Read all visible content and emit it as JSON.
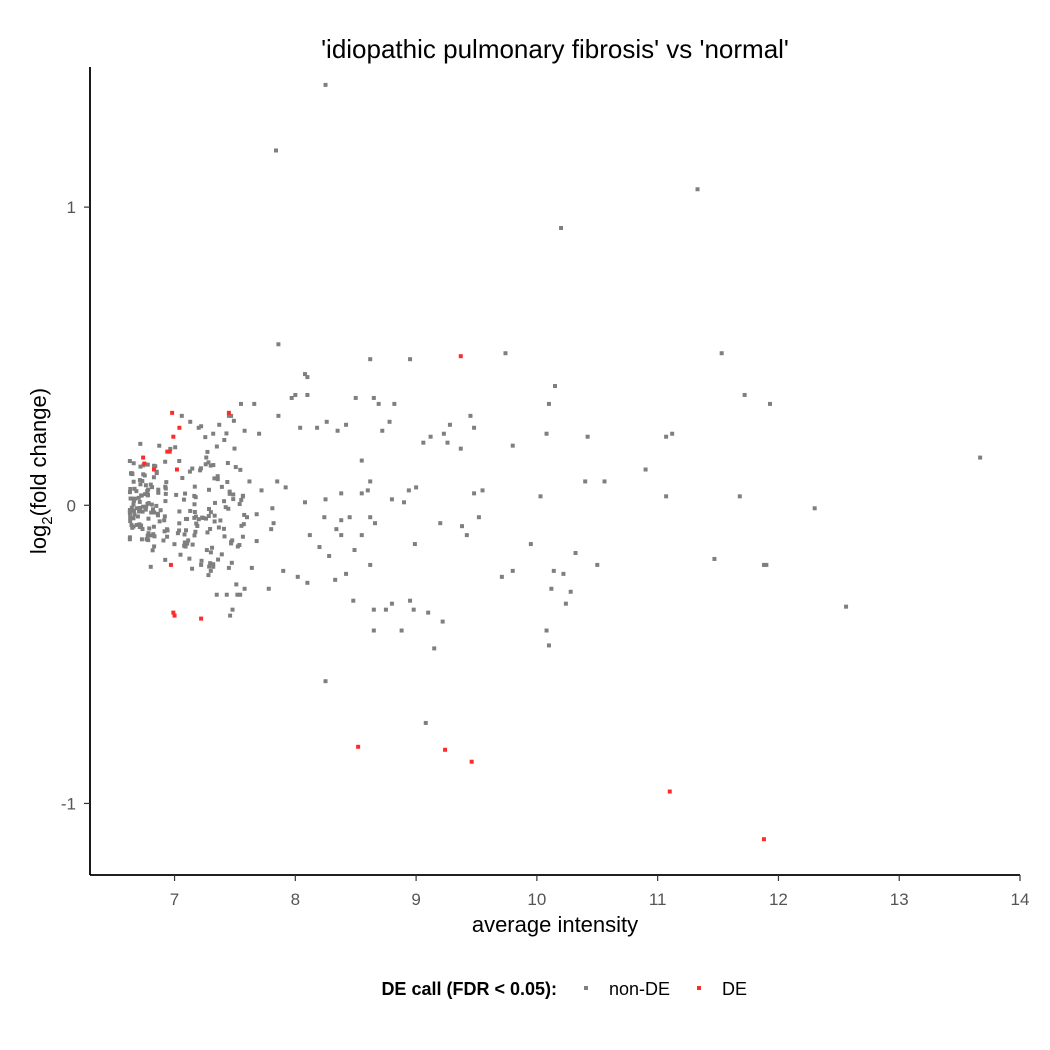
{
  "chart_data": {
    "type": "scatter",
    "title": "'idiopathic pulmonary fibrosis' vs 'normal'",
    "xlabel": "average intensity",
    "ylabel_main": "log",
    "ylabel_sub": "2",
    "ylabel_rest": "(fold change)",
    "xlim": [
      6.3,
      14.0
    ],
    "ylim": [
      -1.24,
      1.47
    ],
    "x_ticks": [
      7,
      8,
      9,
      10,
      11,
      12,
      13,
      14
    ],
    "y_ticks": [
      -1,
      0,
      1
    ],
    "x_tick_labels": [
      "7",
      "8",
      "9",
      "10",
      "11",
      "12",
      "13",
      "14"
    ],
    "y_tick_labels": [
      "-1",
      "0",
      "1"
    ],
    "grid": false,
    "legend": {
      "position": "bottom",
      "title": "DE call (FDR < 0.05):",
      "entries": [
        "non-DE",
        "DE"
      ]
    },
    "colors": {
      "non_de": "#7f7f7f",
      "de": "#ff2a2a"
    },
    "series": [
      {
        "name": "non-DE",
        "points": [
          [
            8.25,
            1.41
          ],
          [
            7.84,
            1.19
          ],
          [
            11.33,
            1.06
          ],
          [
            10.2,
            0.93
          ],
          [
            7.86,
            0.54
          ],
          [
            9.74,
            0.51
          ],
          [
            11.53,
            0.51
          ],
          [
            8.62,
            0.49
          ],
          [
            8.95,
            0.49
          ],
          [
            10.15,
            0.4
          ],
          [
            11.72,
            0.37
          ],
          [
            11.93,
            0.34
          ],
          [
            8.08,
            0.44
          ],
          [
            8.1,
            0.43
          ],
          [
            8.0,
            0.37
          ],
          [
            7.97,
            0.36
          ],
          [
            8.1,
            0.37
          ],
          [
            8.5,
            0.36
          ],
          [
            8.65,
            0.36
          ],
          [
            8.69,
            0.34
          ],
          [
            8.82,
            0.34
          ],
          [
            10.1,
            0.34
          ],
          [
            7.06,
            0.3
          ],
          [
            7.55,
            0.34
          ],
          [
            7.66,
            0.34
          ],
          [
            7.45,
            0.3
          ],
          [
            7.86,
            0.3
          ],
          [
            8.26,
            0.28
          ],
          [
            8.42,
            0.27
          ],
          [
            8.78,
            0.28
          ],
          [
            9.23,
            0.24
          ],
          [
            9.28,
            0.27
          ],
          [
            9.45,
            0.3
          ],
          [
            9.48,
            0.26
          ],
          [
            10.08,
            0.24
          ],
          [
            10.42,
            0.23
          ],
          [
            11.07,
            0.23
          ],
          [
            11.12,
            0.24
          ],
          [
            7.58,
            0.25
          ],
          [
            7.7,
            0.24
          ],
          [
            7.13,
            0.28
          ],
          [
            7.2,
            0.26
          ],
          [
            7.37,
            0.27
          ],
          [
            7.32,
            0.24
          ],
          [
            8.04,
            0.26
          ],
          [
            8.18,
            0.26
          ],
          [
            8.35,
            0.25
          ],
          [
            8.72,
            0.25
          ],
          [
            9.12,
            0.23
          ],
          [
            9.26,
            0.21
          ],
          [
            9.8,
            0.2
          ],
          [
            10.9,
            0.12
          ],
          [
            13.67,
            0.16
          ],
          [
            8.55,
            0.15
          ],
          [
            9.06,
            0.21
          ],
          [
            9.37,
            0.19
          ],
          [
            10.4,
            0.08
          ],
          [
            10.56,
            0.08
          ],
          [
            11.07,
            0.03
          ],
          [
            11.68,
            0.03
          ],
          [
            12.3,
            -0.01
          ],
          [
            10.03,
            0.03
          ],
          [
            9.48,
            0.04
          ],
          [
            9.55,
            0.05
          ],
          [
            9.0,
            0.06
          ],
          [
            8.94,
            0.05
          ],
          [
            8.6,
            0.05
          ],
          [
            8.62,
            0.08
          ],
          [
            8.9,
            0.01
          ],
          [
            8.8,
            0.02
          ],
          [
            8.38,
            0.04
          ],
          [
            8.55,
            0.04
          ],
          [
            8.08,
            0.01
          ],
          [
            8.25,
            0.02
          ],
          [
            7.85,
            0.08
          ],
          [
            7.62,
            0.08
          ],
          [
            7.72,
            0.05
          ],
          [
            7.92,
            0.06
          ],
          [
            7.81,
            -0.01
          ],
          [
            7.68,
            -0.03
          ],
          [
            7.6,
            -0.04
          ],
          [
            7.82,
            -0.06
          ],
          [
            8.24,
            -0.04
          ],
          [
            8.38,
            -0.05
          ],
          [
            8.45,
            -0.04
          ],
          [
            8.62,
            -0.04
          ],
          [
            8.66,
            -0.06
          ],
          [
            8.34,
            -0.08
          ],
          [
            8.38,
            -0.1
          ],
          [
            8.55,
            -0.1
          ],
          [
            8.2,
            -0.14
          ],
          [
            8.28,
            -0.17
          ],
          [
            8.49,
            -0.15
          ],
          [
            8.12,
            -0.1
          ],
          [
            7.68,
            -0.12
          ],
          [
            7.8,
            -0.08
          ],
          [
            9.2,
            -0.06
          ],
          [
            9.38,
            -0.07
          ],
          [
            9.42,
            -0.1
          ],
          [
            9.52,
            -0.04
          ],
          [
            8.99,
            -0.13
          ],
          [
            9.95,
            -0.13
          ],
          [
            10.32,
            -0.16
          ],
          [
            10.14,
            -0.22
          ],
          [
            10.22,
            -0.23
          ],
          [
            9.8,
            -0.22
          ],
          [
            9.71,
            -0.24
          ],
          [
            10.5,
            -0.2
          ],
          [
            11.47,
            -0.18
          ],
          [
            11.88,
            -0.2
          ],
          [
            11.9,
            -0.2
          ],
          [
            10.12,
            -0.28
          ],
          [
            10.28,
            -0.29
          ],
          [
            10.24,
            -0.33
          ],
          [
            12.56,
            -0.34
          ],
          [
            10.08,
            -0.42
          ],
          [
            10.1,
            -0.47
          ],
          [
            9.22,
            -0.39
          ],
          [
            9.15,
            -0.48
          ],
          [
            8.25,
            -0.59
          ],
          [
            9.08,
            -0.73
          ],
          [
            8.62,
            -0.2
          ],
          [
            8.42,
            -0.23
          ],
          [
            8.33,
            -0.25
          ],
          [
            8.1,
            -0.26
          ],
          [
            8.02,
            -0.24
          ],
          [
            7.9,
            -0.22
          ],
          [
            7.78,
            -0.28
          ],
          [
            8.48,
            -0.32
          ],
          [
            8.65,
            -0.35
          ],
          [
            8.75,
            -0.35
          ],
          [
            8.8,
            -0.33
          ],
          [
            8.95,
            -0.32
          ],
          [
            8.98,
            -0.35
          ],
          [
            9.1,
            -0.36
          ],
          [
            8.65,
            -0.42
          ],
          [
            8.88,
            -0.42
          ],
          [
            7.58,
            -0.28
          ],
          [
            7.52,
            -0.3
          ],
          [
            7.48,
            -0.35
          ],
          [
            7.46,
            -0.37
          ],
          [
            7.22,
            -0.2
          ],
          [
            7.3,
            -0.22
          ],
          [
            7.45,
            -0.21
          ],
          [
            7.64,
            -0.21
          ]
        ]
      },
      {
        "name": "DE",
        "points": [
          [
            9.37,
            0.5
          ],
          [
            6.98,
            0.31
          ],
          [
            7.45,
            0.31
          ],
          [
            7.04,
            0.26
          ],
          [
            6.99,
            0.23
          ],
          [
            6.94,
            0.18
          ],
          [
            6.96,
            0.18
          ],
          [
            6.74,
            0.16
          ],
          [
            6.75,
            0.14
          ],
          [
            6.83,
            0.12
          ],
          [
            7.02,
            0.12
          ],
          [
            6.97,
            -0.2
          ],
          [
            6.99,
            -0.36
          ],
          [
            7.0,
            -0.37
          ],
          [
            7.22,
            -0.38
          ],
          [
            8.52,
            -0.81
          ],
          [
            9.24,
            -0.82
          ],
          [
            9.46,
            -0.86
          ],
          [
            11.1,
            -0.96
          ],
          [
            11.88,
            -1.12
          ]
        ]
      }
    ]
  }
}
